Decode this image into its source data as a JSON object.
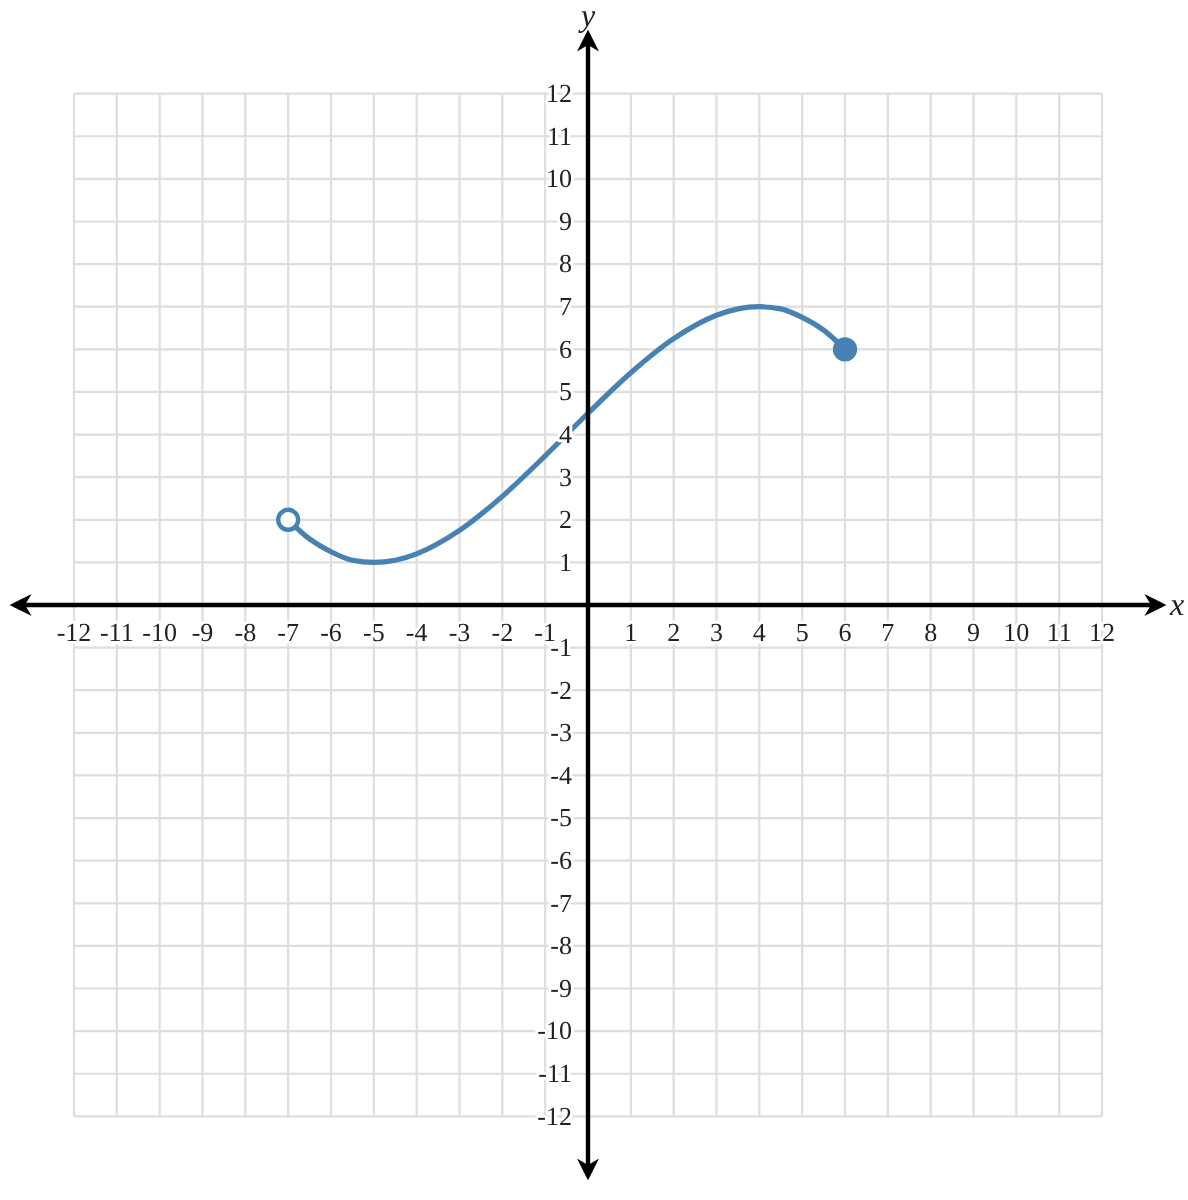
{
  "chart_data": {
    "type": "line",
    "xlabel": "x",
    "ylabel": "y",
    "xlim": [
      -13.4,
      13.4
    ],
    "ylim": [
      -13.4,
      13.4
    ],
    "xticks": [
      -12,
      -11,
      -10,
      -9,
      -8,
      -7,
      -6,
      -5,
      -4,
      -3,
      -2,
      -1,
      1,
      2,
      3,
      4,
      5,
      6,
      7,
      8,
      9,
      10,
      11,
      12
    ],
    "yticks": [
      -12,
      -11,
      -10,
      -9,
      -8,
      -7,
      -6,
      -5,
      -4,
      -3,
      -2,
      -1,
      1,
      2,
      3,
      4,
      5,
      6,
      7,
      8,
      9,
      10,
      11,
      12
    ],
    "grid": true,
    "series": [
      {
        "color": "#4682b4",
        "marker": "none",
        "x": [
          -7,
          -6.5,
          -6,
          -5.5,
          -5,
          -4.5,
          -4,
          -3,
          -2,
          -1,
          0,
          1,
          2,
          3,
          3.5,
          4,
          4.5,
          5,
          5.5,
          6
        ],
        "values": [
          2,
          1.55,
          1.25,
          1.05,
          1,
          1.05,
          1.2,
          1.75,
          2.55,
          3.5,
          4.5,
          5.45,
          6.25,
          6.8,
          6.95,
          7,
          6.95,
          6.75,
          6.45,
          6
        ]
      },
      {
        "type": "scatter",
        "color": "#4682b4",
        "colors": [
          "#ffffff"
        ],
        "marker": "circle",
        "x": [
          -7
        ],
        "values": [
          2
        ]
      },
      {
        "type": "scatter",
        "color": "#4682b4",
        "marker": "circle",
        "x": [
          6
        ],
        "values": [
          6
        ]
      }
    ]
  }
}
